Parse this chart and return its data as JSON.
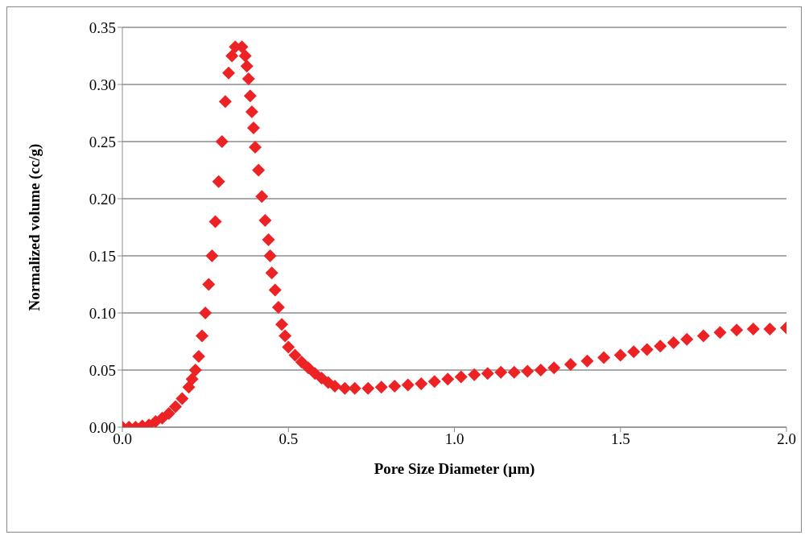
{
  "chart_data": {
    "type": "scatter",
    "xlabel": "Pore Size Diameter (µm)",
    "ylabel": "Normalized volume (cc/g)",
    "xlim": [
      0,
      2
    ],
    "xticks": [
      {
        "value": 0,
        "label": "0.0"
      },
      {
        "value": 0.5,
        "label": "0.5"
      },
      {
        "value": 1,
        "label": "1.0"
      },
      {
        "value": 1.5,
        "label": "1.5"
      },
      {
        "value": 2,
        "label": "2.0"
      }
    ],
    "ylim": [
      0,
      0.35
    ],
    "yticks": [
      {
        "value": 0,
        "label": "0.00"
      },
      {
        "value": 0.05,
        "label": "0.05"
      },
      {
        "value": 0.1,
        "label": "0.10"
      },
      {
        "value": 0.15,
        "label": "0.15"
      },
      {
        "value": 0.2,
        "label": "0.20"
      },
      {
        "value": 0.25,
        "label": "0.25"
      },
      {
        "value": 0.3,
        "label": "0.30"
      },
      {
        "value": 0.35,
        "label": "0.35"
      }
    ],
    "grid": "y",
    "marker": "diamond",
    "legend": false,
    "series": [
      {
        "color": "#ed2224",
        "x": [
          0,
          0.02,
          0.04,
          0.06,
          0.08,
          0.1,
          0.12,
          0.14,
          0.16,
          0.18,
          0.2,
          0.21,
          0.22,
          0.23,
          0.24,
          0.25,
          0.26,
          0.27,
          0.28,
          0.29,
          0.3,
          0.31,
          0.32,
          0.33,
          0.34,
          0.36,
          0.37,
          0.375,
          0.38,
          0.385,
          0.39,
          0.395,
          0.4,
          0.41,
          0.42,
          0.43,
          0.44,
          0.445,
          0.45,
          0.46,
          0.47,
          0.48,
          0.49,
          0.5,
          0.52,
          0.54,
          0.56,
          0.58,
          0.6,
          0.62,
          0.64,
          0.67,
          0.7,
          0.74,
          0.78,
          0.82,
          0.86,
          0.9,
          0.94,
          0.98,
          1.02,
          1.06,
          1.1,
          1.14,
          1.18,
          1.22,
          1.26,
          1.3,
          1.35,
          1.4,
          1.45,
          1.5,
          1.54,
          1.58,
          1.62,
          1.66,
          1.7,
          1.75,
          1.8,
          1.85,
          1.9,
          1.95,
          2
        ],
        "values": [
          0,
          0,
          0,
          0.001,
          0.002,
          0.005,
          0.008,
          0.012,
          0.018,
          0.025,
          0.035,
          0.042,
          0.05,
          0.062,
          0.08,
          0.1,
          0.125,
          0.15,
          0.18,
          0.215,
          0.25,
          0.285,
          0.31,
          0.325,
          0.333,
          0.333,
          0.325,
          0.316,
          0.305,
          0.29,
          0.276,
          0.262,
          0.245,
          0.225,
          0.202,
          0.181,
          0.164,
          0.15,
          0.135,
          0.12,
          0.105,
          0.09,
          0.08,
          0.07,
          0.063,
          0.057,
          0.052,
          0.047,
          0.043,
          0.039,
          0.036,
          0.034,
          0.034,
          0.034,
          0.035,
          0.036,
          0.037,
          0.038,
          0.04,
          0.042,
          0.044,
          0.046,
          0.047,
          0.048,
          0.048,
          0.049,
          0.05,
          0.052,
          0.055,
          0.058,
          0.061,
          0.063,
          0.066,
          0.068,
          0.071,
          0.074,
          0.077,
          0.08,
          0.083,
          0.085,
          0.086,
          0.086,
          0.087
        ]
      }
    ]
  }
}
